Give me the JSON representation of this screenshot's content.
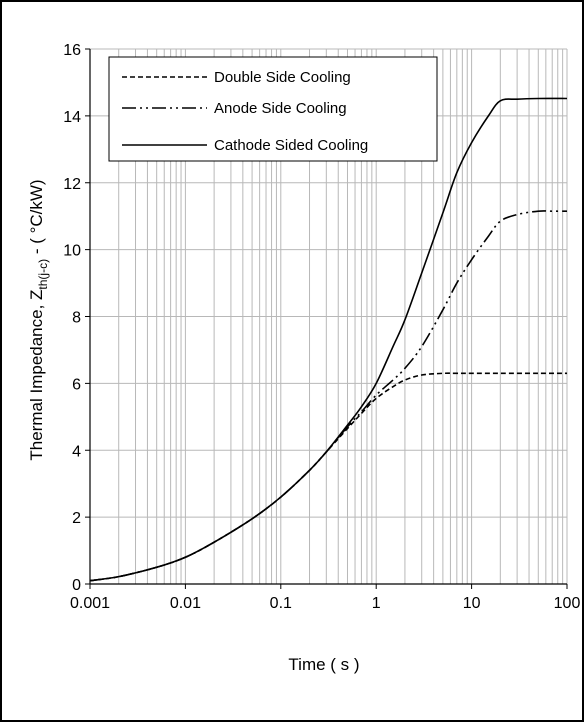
{
  "chart_data": {
    "type": "line",
    "title": "",
    "xlabel": "Time ( s )",
    "ylabel_parts": {
      "main": "Thermal Impedance, Z",
      "subscript": "th(j-c)",
      "suffix": " - ( °C/kW)"
    },
    "xscale": "log",
    "xlim": [
      0.001,
      100
    ],
    "ylim": [
      0,
      16
    ],
    "x_ticks": [
      "0.001",
      "0.01",
      "0.1",
      "1",
      "10",
      "100"
    ],
    "y_ticks": [
      "0",
      "2",
      "4",
      "6",
      "8",
      "10",
      "12",
      "14",
      "16"
    ],
    "grid": true,
    "legend_position": "top-left",
    "series": [
      {
        "name": "Double Side Cooling",
        "style": "dashed",
        "color": "#000000",
        "x": [
          0.001,
          0.002,
          0.005,
          0.01,
          0.02,
          0.05,
          0.1,
          0.2,
          0.3,
          0.5,
          0.7,
          1,
          1.5,
          2,
          3,
          5,
          7,
          10,
          20,
          50,
          100
        ],
        "y": [
          0.1,
          0.22,
          0.5,
          0.8,
          1.25,
          1.95,
          2.6,
          3.4,
          3.95,
          4.65,
          5.1,
          5.55,
          5.9,
          6.1,
          6.25,
          6.3,
          6.3,
          6.3,
          6.3,
          6.3,
          6.3
        ]
      },
      {
        "name": "Anode Side Cooling",
        "style": "dash-dot-dot",
        "color": "#000000",
        "x": [
          0.001,
          0.002,
          0.005,
          0.01,
          0.02,
          0.05,
          0.1,
          0.2,
          0.3,
          0.5,
          0.7,
          1,
          1.5,
          2,
          3,
          5,
          7,
          10,
          15,
          20,
          30,
          50,
          70,
          100
        ],
        "y": [
          0.1,
          0.22,
          0.5,
          0.8,
          1.25,
          1.95,
          2.6,
          3.4,
          3.95,
          4.7,
          5.15,
          5.65,
          6.1,
          6.45,
          7.1,
          8.2,
          9.0,
          9.7,
          10.4,
          10.85,
          11.05,
          11.15,
          11.15,
          11.15
        ]
      },
      {
        "name": "Cathode Sided Cooling",
        "style": "solid",
        "color": "#000000",
        "x": [
          0.001,
          0.002,
          0.005,
          0.01,
          0.02,
          0.05,
          0.1,
          0.2,
          0.3,
          0.5,
          0.7,
          1,
          1.5,
          2,
          3,
          5,
          7,
          10,
          15,
          20,
          30,
          50,
          100
        ],
        "y": [
          0.1,
          0.22,
          0.5,
          0.8,
          1.25,
          1.95,
          2.6,
          3.4,
          3.95,
          4.75,
          5.3,
          6.0,
          7.1,
          7.9,
          9.3,
          11.1,
          12.3,
          13.2,
          14.0,
          14.45,
          14.5,
          14.52,
          14.52
        ]
      }
    ]
  }
}
